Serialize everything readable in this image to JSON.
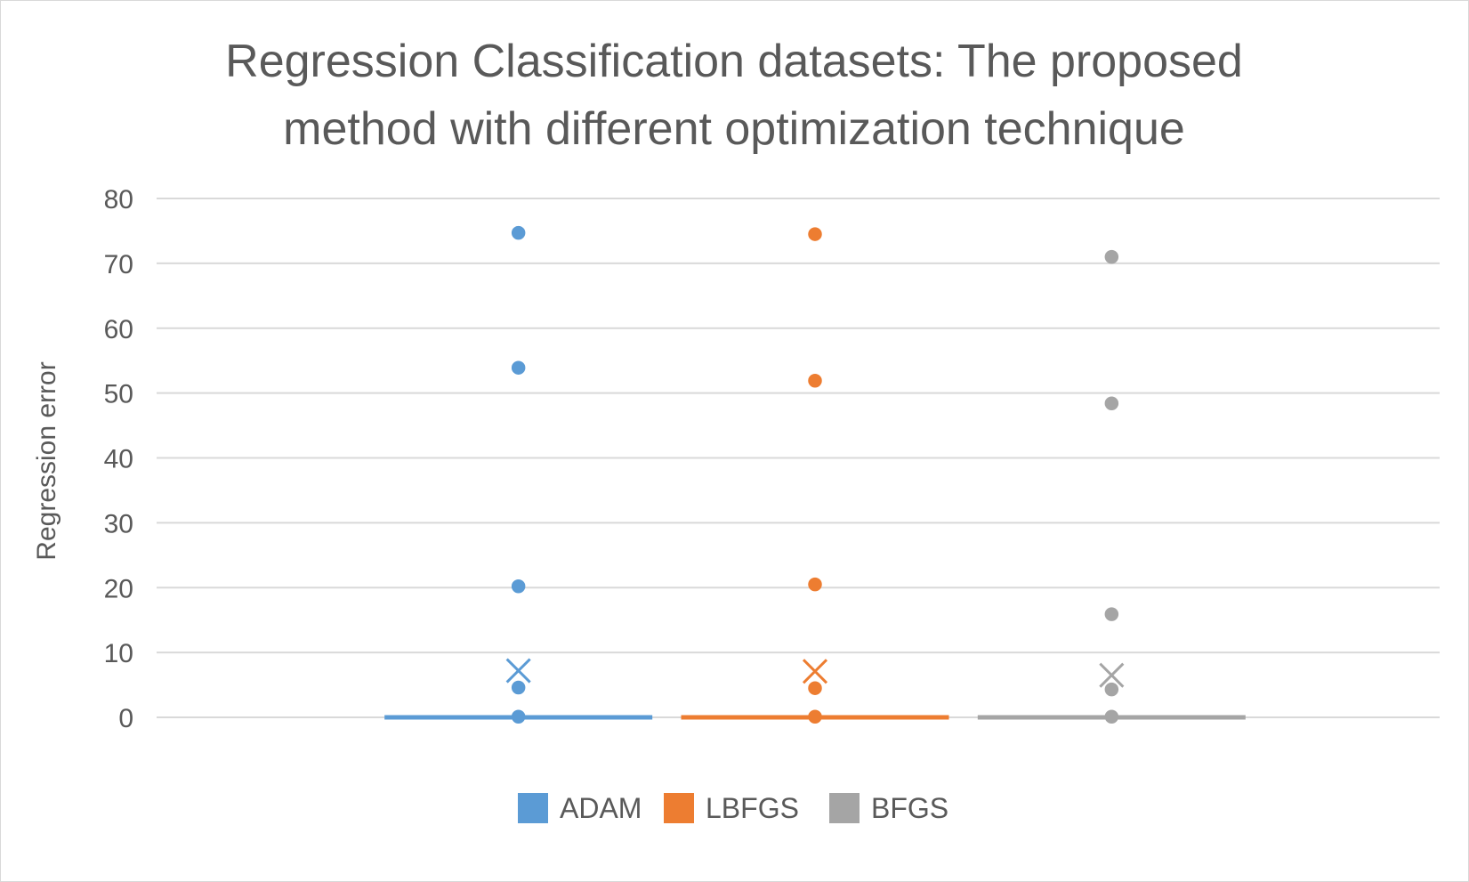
{
  "chart_data": {
    "type": "box",
    "title_lines": [
      "Regression Classification datasets: The proposed",
      "method with different optimization technique"
    ],
    "ylabel": "Regression error",
    "xlabel": "",
    "ylim": [
      0,
      80
    ],
    "yticks": [
      0,
      10,
      20,
      30,
      40,
      50,
      60,
      70,
      80
    ],
    "grid": true,
    "legend_position": "bottom",
    "series": [
      {
        "name": "ADAM",
        "color": "#5b9bd5",
        "box": {
          "min": 0,
          "q1": 0,
          "median": 0,
          "q3": 0,
          "max": 0
        },
        "mean": 7.2,
        "outliers": [
          74.7,
          53.9,
          20.2,
          4.6,
          0.1
        ]
      },
      {
        "name": "LBFGS",
        "color": "#ed7d31",
        "box": {
          "min": 0,
          "q1": 0,
          "median": 0,
          "q3": 0,
          "max": 0
        },
        "mean": 7.1,
        "outliers": [
          74.5,
          51.9,
          20.5,
          4.5,
          0.1
        ]
      },
      {
        "name": "BFGS",
        "color": "#a5a5a5",
        "box": {
          "min": 0,
          "q1": 0,
          "median": 0,
          "q3": 0,
          "max": 0
        },
        "mean": 6.5,
        "outliers": [
          71.0,
          48.4,
          15.9,
          4.3,
          0.1
        ]
      }
    ]
  }
}
